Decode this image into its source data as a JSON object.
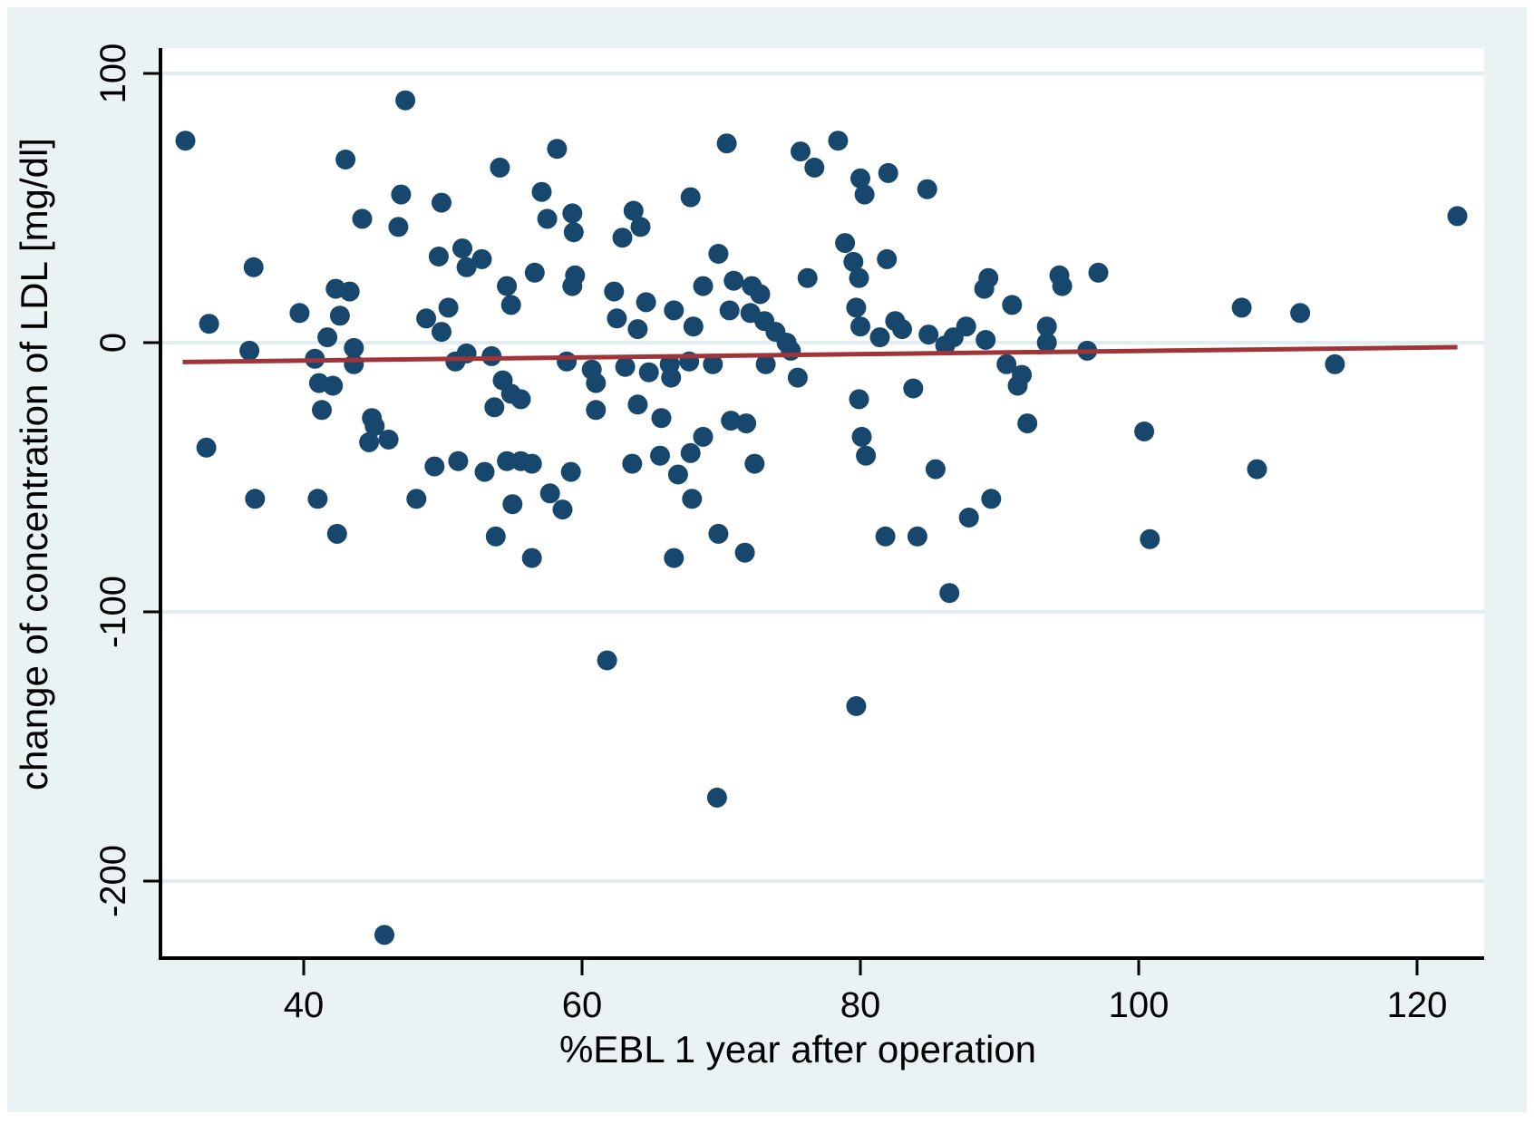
{
  "chart_data": {
    "type": "scatter",
    "title": "",
    "xlabel": "%EBL 1 year after operation",
    "ylabel": "change of concentration of LDL [mg/dl]",
    "x_ticks": [
      40,
      60,
      80,
      100,
      120
    ],
    "y_ticks": [
      100,
      0,
      -100,
      -200
    ],
    "xlim": [
      29.7,
      124.8
    ],
    "ylim": [
      -228.6,
      109.4
    ],
    "grid": "horizontal gridlines at y ticks, light blue, drawn on white plot region",
    "legend": "none",
    "colors": {
      "point": "#17476C",
      "fit_line": "#A03539",
      "outer_background": "#EAF2F3",
      "plot_background": "#FFFFFF",
      "gridline": "#E2EDF0",
      "axis": "#000000"
    },
    "fit_line": {
      "x1": 31.3,
      "y1": -7.2,
      "x2": 122.9,
      "y2": -1.7
    },
    "points": [
      [
        47.3,
        90
      ],
      [
        31.5,
        75
      ],
      [
        43,
        68
      ],
      [
        58.2,
        72
      ],
      [
        54.1,
        65
      ],
      [
        57.1,
        56
      ],
      [
        47,
        55
      ],
      [
        49.9,
        52
      ],
      [
        44.2,
        46
      ],
      [
        46.8,
        43
      ],
      [
        57.5,
        46
      ],
      [
        59.4,
        41
      ],
      [
        49.7,
        32
      ],
      [
        51.4,
        35
      ],
      [
        51.7,
        28
      ],
      [
        52.8,
        31
      ],
      [
        36.4,
        28
      ],
      [
        56.6,
        26
      ],
      [
        59.5,
        25
      ],
      [
        42.3,
        20
      ],
      [
        43.3,
        19
      ],
      [
        39.7,
        11
      ],
      [
        42.6,
        10
      ],
      [
        33.2,
        7
      ],
      [
        41.7,
        2
      ],
      [
        43.6,
        -2
      ],
      [
        48.8,
        9
      ],
      [
        50.4,
        13
      ],
      [
        49.9,
        4
      ],
      [
        54.6,
        21
      ],
      [
        54.9,
        14
      ],
      [
        59.3,
        21
      ],
      [
        70.4,
        74
      ],
      [
        75.7,
        71
      ],
      [
        76.7,
        65
      ],
      [
        78.4,
        75
      ],
      [
        80,
        61
      ],
      [
        80.3,
        55
      ],
      [
        82,
        63
      ],
      [
        84.8,
        57
      ],
      [
        59.3,
        48
      ],
      [
        63.7,
        49
      ],
      [
        64.2,
        43
      ],
      [
        62.9,
        39
      ],
      [
        67.8,
        54
      ],
      [
        69.8,
        33
      ],
      [
        78.9,
        37
      ],
      [
        79.5,
        30
      ],
      [
        79.9,
        24
      ],
      [
        81.9,
        31
      ],
      [
        76.2,
        24
      ],
      [
        62.3,
        19
      ],
      [
        64.6,
        15
      ],
      [
        68.7,
        21
      ],
      [
        70.9,
        23
      ],
      [
        72.2,
        21
      ],
      [
        72.8,
        18
      ],
      [
        66.6,
        12
      ],
      [
        70.6,
        12
      ],
      [
        62.5,
        9
      ],
      [
        64,
        5
      ],
      [
        68,
        6
      ],
      [
        72.1,
        11
      ],
      [
        73.1,
        8
      ],
      [
        73.9,
        4
      ],
      [
        74.7,
        0
      ],
      [
        75,
        -3
      ],
      [
        79.7,
        13
      ],
      [
        80,
        6
      ],
      [
        81.4,
        2
      ],
      [
        82.5,
        8
      ],
      [
        83,
        5
      ],
      [
        84.9,
        3
      ],
      [
        86.1,
        -1
      ],
      [
        87.6,
        6
      ],
      [
        89.2,
        24
      ],
      [
        88.9,
        20
      ],
      [
        90.9,
        14
      ],
      [
        94.3,
        25
      ],
      [
        94.5,
        21
      ],
      [
        97.1,
        26
      ],
      [
        86.7,
        2
      ],
      [
        89,
        1
      ],
      [
        93.4,
        6
      ],
      [
        93.4,
        0
      ],
      [
        96.3,
        -3
      ],
      [
        107.4,
        13
      ],
      [
        111.6,
        11
      ],
      [
        122.9,
        47
      ],
      [
        36.1,
        -3
      ],
      [
        40.8,
        -6
      ],
      [
        43.6,
        -8
      ],
      [
        41.1,
        -15
      ],
      [
        42.1,
        -16
      ],
      [
        41.3,
        -25
      ],
      [
        33,
        -39
      ],
      [
        36.5,
        -58
      ],
      [
        41,
        -58
      ],
      [
        42.4,
        -71
      ],
      [
        44.9,
        -28
      ],
      [
        45.1,
        -31
      ],
      [
        44.7,
        -37
      ],
      [
        46.1,
        -36
      ],
      [
        49.4,
        -46
      ],
      [
        51.1,
        -44
      ],
      [
        48.1,
        -58
      ],
      [
        50.9,
        -7
      ],
      [
        51.7,
        -4
      ],
      [
        53.5,
        -5
      ],
      [
        54.3,
        -14
      ],
      [
        54.9,
        -19
      ],
      [
        53.7,
        -24
      ],
      [
        55.6,
        -21
      ],
      [
        53,
        -48
      ],
      [
        54.6,
        -44
      ],
      [
        55.6,
        -44
      ],
      [
        56.4,
        -45
      ],
      [
        59.2,
        -48
      ],
      [
        57.7,
        -56
      ],
      [
        58.6,
        -62
      ],
      [
        55,
        -60
      ],
      [
        53.8,
        -72
      ],
      [
        56.4,
        -80
      ],
      [
        58.9,
        -7
      ],
      [
        60.7,
        -10
      ],
      [
        61,
        -15
      ],
      [
        63.1,
        -9
      ],
      [
        64.8,
        -11
      ],
      [
        66.3,
        -8
      ],
      [
        66.4,
        -13
      ],
      [
        67.7,
        -7
      ],
      [
        69.4,
        -8
      ],
      [
        73.2,
        -8
      ],
      [
        75.5,
        -13
      ],
      [
        61,
        -25
      ],
      [
        64,
        -23
      ],
      [
        65.7,
        -28
      ],
      [
        70.7,
        -29
      ],
      [
        71.8,
        -30
      ],
      [
        68.7,
        -35
      ],
      [
        67.8,
        -41
      ],
      [
        65.6,
        -42
      ],
      [
        63.6,
        -45
      ],
      [
        66.9,
        -49
      ],
      [
        67.9,
        -58
      ],
      [
        72.4,
        -45
      ],
      [
        69.8,
        -71
      ],
      [
        66.6,
        -80
      ],
      [
        71.7,
        -78
      ],
      [
        79.9,
        -21
      ],
      [
        80.1,
        -35
      ],
      [
        80.4,
        -42
      ],
      [
        83.8,
        -17
      ],
      [
        85.4,
        -47
      ],
      [
        81.8,
        -72
      ],
      [
        84.1,
        -72
      ],
      [
        86.4,
        -93
      ],
      [
        90.5,
        -8
      ],
      [
        91.6,
        -12
      ],
      [
        91.3,
        -16
      ],
      [
        114.1,
        -8
      ],
      [
        92,
        -30
      ],
      [
        100.4,
        -33
      ],
      [
        108.5,
        -47
      ],
      [
        89.4,
        -58
      ],
      [
        87.8,
        -65
      ],
      [
        100.8,
        -73
      ],
      [
        45.8,
        -220
      ],
      [
        61.8,
        -118
      ],
      [
        79.7,
        -135
      ],
      [
        69.7,
        -169
      ]
    ]
  }
}
